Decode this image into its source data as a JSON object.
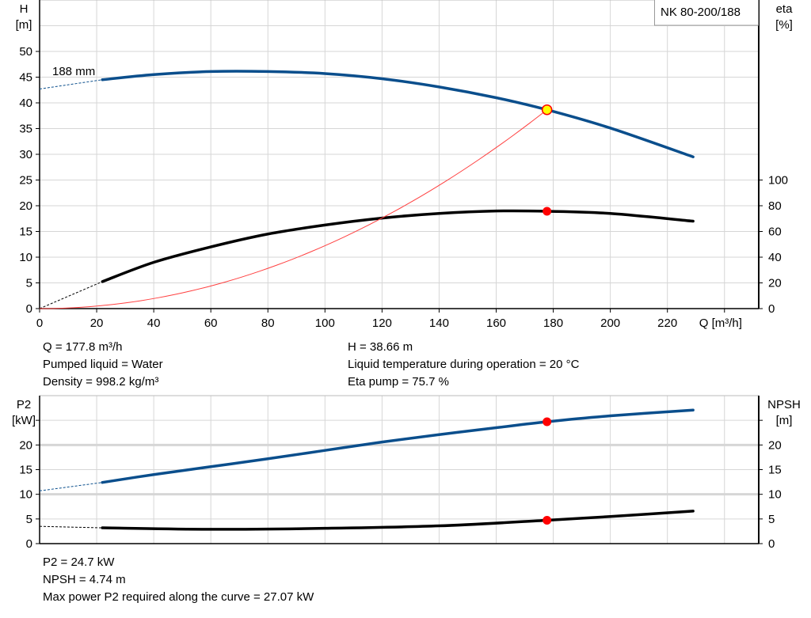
{
  "chart_data": [
    {
      "type": "line",
      "title": "NK 80-200/188",
      "xlabel": "Q [m³/h]",
      "ylabel": "H\n[m]",
      "ylabel_lines": [
        "H",
        "[m]"
      ],
      "y2label_lines": [
        "eta",
        "[%]"
      ],
      "xlim": [
        0,
        252
      ],
      "ylim": [
        0,
        60
      ],
      "y2lim": [
        0,
        240
      ],
      "x_ticks": [
        0,
        20,
        40,
        60,
        80,
        100,
        120,
        140,
        160,
        180,
        200,
        220
      ],
      "y_ticks": [
        0,
        5,
        10,
        15,
        20,
        25,
        30,
        35,
        40,
        45,
        50
      ],
      "y2_ticks": [
        0,
        20,
        40,
        60,
        80,
        100
      ],
      "grid": true,
      "curve_label": "188 mm",
      "series": [
        {
          "key": "H",
          "axis": "left",
          "color": "#0a4e8c",
          "x": [
            22,
            40,
            60,
            80,
            100,
            120,
            140,
            160,
            177.8,
            200,
            229
          ],
          "y": [
            44.5,
            45.5,
            46.1,
            46.1,
            45.7,
            44.7,
            43.1,
            41.0,
            38.66,
            35.1,
            29.5
          ],
          "extrapolated": {
            "x": [
              0,
              22
            ],
            "y": [
              42.7,
              44.5
            ]
          }
        },
        {
          "key": "eta",
          "axis": "right",
          "color": "#000000",
          "x": [
            22,
            40,
            60,
            80,
            100,
            120,
            140,
            160,
            177.8,
            200,
            229
          ],
          "y": [
            21,
            36,
            48,
            58,
            65,
            70.4,
            74,
            75.9,
            75.7,
            74,
            68
          ],
          "extrapolated": {
            "x": [
              0,
              22
            ],
            "y": [
              0,
              21
            ]
          }
        },
        {
          "key": "system",
          "axis": "left",
          "color": "#ff4040",
          "type": "parabola",
          "x_range": [
            0,
            177.8
          ],
          "h_at_duty": 38.66
        }
      ],
      "duty_point": {
        "Q": 177.8,
        "H": 38.66,
        "eta": 75.7,
        "fill": "#ffff00",
        "stroke": "#ff0000"
      }
    },
    {
      "type": "line",
      "ylabel_lines": [
        "P2",
        "[kW]"
      ],
      "y2label_lines": [
        "NPSH",
        "[m]"
      ],
      "xlim": [
        0,
        252
      ],
      "ylim": [
        0,
        30
      ],
      "y2lim": [
        0,
        30
      ],
      "x_ticks": [
        0,
        20,
        40,
        60,
        80,
        100,
        120,
        140,
        160,
        180,
        200,
        220
      ],
      "y_ticks": [
        0,
        5,
        10,
        15,
        20
      ],
      "y2_ticks": [
        0,
        5,
        10,
        15,
        20
      ],
      "grid": true,
      "series": [
        {
          "key": "P2",
          "axis": "left",
          "color": "#0a4e8c",
          "x": [
            22,
            40,
            60,
            80,
            100,
            120,
            140,
            160,
            177.8,
            200,
            229
          ],
          "y": [
            12.4,
            14.0,
            15.6,
            17.2,
            18.9,
            20.6,
            22.1,
            23.5,
            24.7,
            25.9,
            27.07
          ],
          "extrapolated": {
            "x": [
              0,
              22
            ],
            "y": [
              10.7,
              12.4
            ]
          }
        },
        {
          "key": "NPSH",
          "axis": "right",
          "color": "#000000",
          "x": [
            22,
            60,
            100,
            140,
            177.8,
            200,
            229
          ],
          "y": [
            3.2,
            2.9,
            3.1,
            3.6,
            4.74,
            5.5,
            6.6
          ],
          "extrapolated": {
            "x": [
              0,
              22
            ],
            "y": [
              3.5,
              3.2
            ]
          }
        }
      ],
      "duty_points": [
        {
          "Q": 177.8,
          "v": 24.7
        },
        {
          "Q": 177.8,
          "v": 4.74
        }
      ],
      "duty_color": "#ff0000"
    }
  ],
  "info_top": {
    "left": [
      "Q = 177.8 m³/h",
      "Pumped liquid = Water",
      "Density = 998.2 kg/m³"
    ],
    "right": [
      "H = 38.66 m",
      "Liquid temperature during operation = 20 °C",
      "Eta pump = 75.7 %"
    ]
  },
  "info_bottom": [
    "P2 = 24.7 kW",
    "NPSH = 4.74 m",
    "Max power P2 required along the curve = 27.07 kW"
  ]
}
